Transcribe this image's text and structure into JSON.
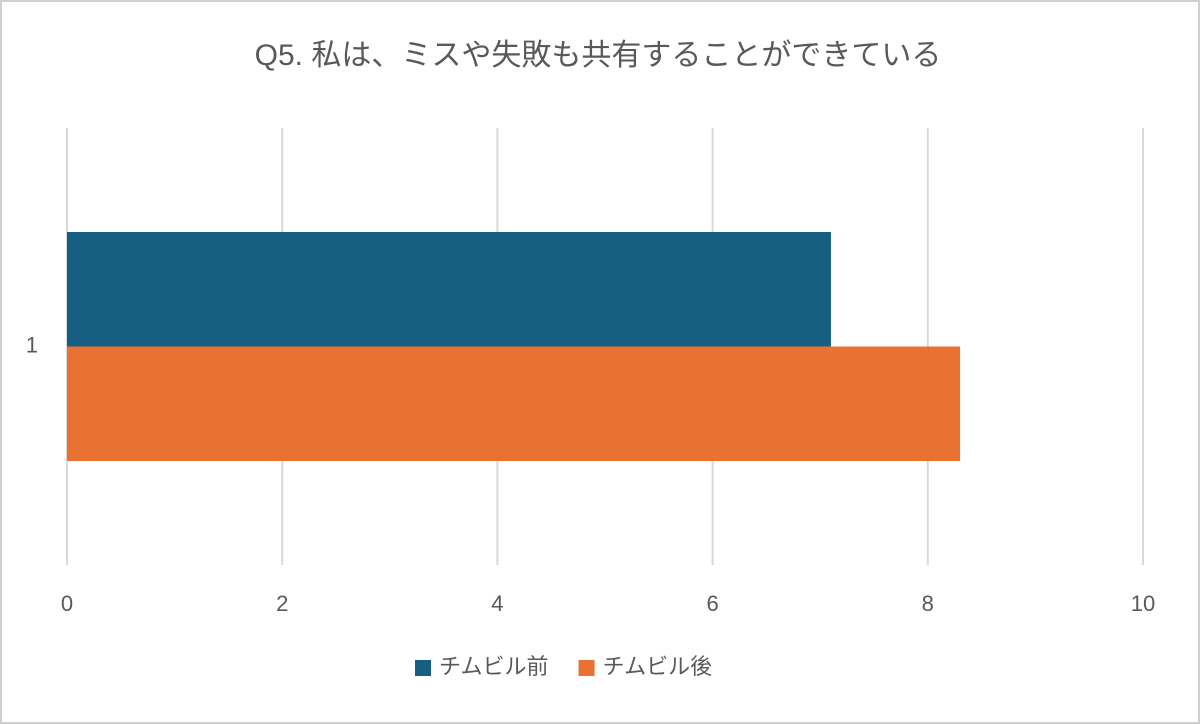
{
  "chart_data": {
    "type": "hbar",
    "title": "Q5. 私は、ミスや失敗も共有することができている",
    "categories": [
      "1"
    ],
    "series": [
      {
        "name": "チムビル前",
        "color": "#175f82",
        "values": [
          7.1
        ]
      },
      {
        "name": "チムビル後",
        "color": "#e97132",
        "values": [
          8.3
        ]
      }
    ],
    "xlim": [
      0,
      10
    ],
    "xticks": [
      0,
      2,
      4,
      6,
      8,
      10
    ],
    "grid": true,
    "legend": "bottom"
  }
}
